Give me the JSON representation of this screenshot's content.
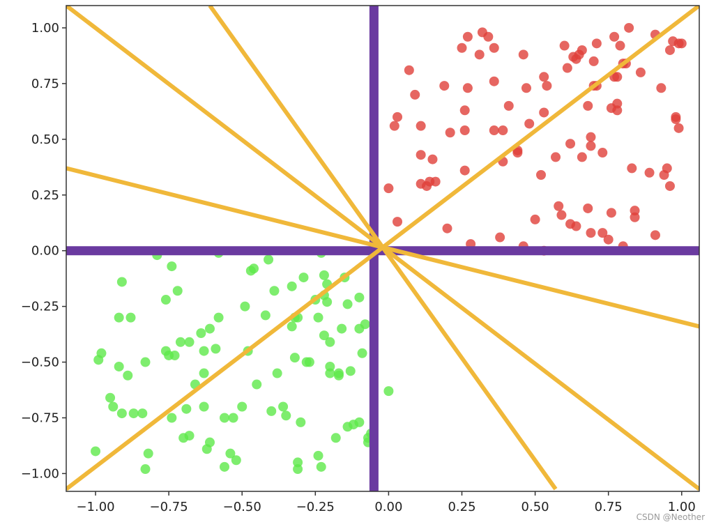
{
  "chart_data": {
    "type": "scatter",
    "title": "",
    "xlabel": "",
    "ylabel": "",
    "xlim": [
      -1.1,
      1.06
    ],
    "ylim": [
      -1.08,
      1.1
    ],
    "grid": false,
    "xticks": [
      -1.0,
      -0.75,
      -0.5,
      -0.25,
      0.0,
      0.25,
      0.5,
      0.75,
      1.0
    ],
    "xtick_labels": [
      "−1.00",
      "−0.75",
      "−0.50",
      "−0.25",
      "0.00",
      "0.25",
      "0.50",
      "0.75",
      "1.00"
    ],
    "yticks": [
      -1.0,
      -0.75,
      -0.5,
      -0.25,
      0.0,
      0.25,
      0.5,
      0.75,
      1.0
    ],
    "ytick_labels": [
      "−1.00",
      "−0.75",
      "−0.50",
      "−0.25",
      "0.00",
      "0.25",
      "0.50",
      "0.75",
      "1.00"
    ],
    "series": [
      {
        "color": "#e0403a",
        "points": [
          [
            0.07,
            0.81
          ],
          [
            0.09,
            0.7
          ],
          [
            0.02,
            0.56
          ],
          [
            0.03,
            0.6
          ],
          [
            0.11,
            0.56
          ],
          [
            0.0,
            0.28
          ],
          [
            0.03,
            0.13
          ],
          [
            0.11,
            0.43
          ],
          [
            0.11,
            0.3
          ],
          [
            0.14,
            0.31
          ],
          [
            0.15,
            0.41
          ],
          [
            0.13,
            0.29
          ],
          [
            0.19,
            0.74
          ],
          [
            0.21,
            0.53
          ],
          [
            0.2,
            0.1
          ],
          [
            0.25,
            0.91
          ],
          [
            0.27,
            0.96
          ],
          [
            0.26,
            0.63
          ],
          [
            0.27,
            0.73
          ],
          [
            0.26,
            0.54
          ],
          [
            0.26,
            0.36
          ],
          [
            0.28,
            0.03
          ],
          [
            0.31,
            0.88
          ],
          [
            0.32,
            0.98
          ],
          [
            0.34,
            0.96
          ],
          [
            0.36,
            0.91
          ],
          [
            0.36,
            0.76
          ],
          [
            0.36,
            0.54
          ],
          [
            0.39,
            0.54
          ],
          [
            0.39,
            0.4
          ],
          [
            0.41,
            0.65
          ],
          [
            0.44,
            0.45
          ],
          [
            0.44,
            0.44
          ],
          [
            0.46,
            0.88
          ],
          [
            0.47,
            0.73
          ],
          [
            0.48,
            0.57
          ],
          [
            0.5,
            0.14
          ],
          [
            0.52,
            0.34
          ],
          [
            0.53,
            0.78
          ],
          [
            0.53,
            0.62
          ],
          [
            0.54,
            0.74
          ],
          [
            0.58,
            0.2
          ],
          [
            0.59,
            0.16
          ],
          [
            0.6,
            0.92
          ],
          [
            0.61,
            0.82
          ],
          [
            0.62,
            0.48
          ],
          [
            0.62,
            0.12
          ],
          [
            0.63,
            0.87
          ],
          [
            0.64,
            0.86
          ],
          [
            0.65,
            0.88
          ],
          [
            0.66,
            0.42
          ],
          [
            0.66,
            0.9
          ],
          [
            0.68,
            0.65
          ],
          [
            0.68,
            0.19
          ],
          [
            0.69,
            0.51
          ],
          [
            0.69,
            0.47
          ],
          [
            0.7,
            0.74
          ],
          [
            0.7,
            0.85
          ],
          [
            0.71,
            0.74
          ],
          [
            0.71,
            0.93
          ],
          [
            0.73,
            0.44
          ],
          [
            0.75,
            0.05
          ],
          [
            0.76,
            0.17
          ],
          [
            0.76,
            0.64
          ],
          [
            0.77,
            0.96
          ],
          [
            0.77,
            0.78
          ],
          [
            0.78,
            0.78
          ],
          [
            0.78,
            0.63
          ],
          [
            0.78,
            0.66
          ],
          [
            0.79,
            0.92
          ],
          [
            0.8,
            0.84
          ],
          [
            0.81,
            0.84
          ],
          [
            0.82,
            1.0
          ],
          [
            0.83,
            0.37
          ],
          [
            0.84,
            0.18
          ],
          [
            0.84,
            0.15
          ],
          [
            0.86,
            0.8
          ],
          [
            0.89,
            0.35
          ],
          [
            0.91,
            0.97
          ],
          [
            0.91,
            0.07
          ],
          [
            0.93,
            0.73
          ],
          [
            0.94,
            0.34
          ],
          [
            0.95,
            0.37
          ],
          [
            0.96,
            0.9
          ],
          [
            0.96,
            0.29
          ],
          [
            0.97,
            0.94
          ],
          [
            0.98,
            0.6
          ],
          [
            0.98,
            0.59
          ],
          [
            0.99,
            0.93
          ],
          [
            1.0,
            0.93
          ],
          [
            0.99,
            0.55
          ],
          [
            0.73,
            0.08
          ],
          [
            0.53,
            0.0
          ],
          [
            0.69,
            0.08
          ],
          [
            0.64,
            0.11
          ],
          [
            0.38,
            0.06
          ],
          [
            0.46,
            0.02
          ],
          [
            0.8,
            0.02
          ],
          [
            0.16,
            0.31
          ],
          [
            0.57,
            0.42
          ]
        ]
      },
      {
        "color": "#5ee84a",
        "points": [
          [
            -0.98,
            -0.46
          ],
          [
            -0.99,
            -0.49
          ],
          [
            -0.95,
            -0.66
          ],
          [
            -0.94,
            -0.7
          ],
          [
            -1.0,
            -0.9
          ],
          [
            -0.92,
            -0.52
          ],
          [
            -0.91,
            -0.14
          ],
          [
            -0.92,
            -0.3
          ],
          [
            -0.91,
            -0.73
          ],
          [
            -0.89,
            -0.56
          ],
          [
            -0.88,
            -0.3
          ],
          [
            -0.87,
            -0.73
          ],
          [
            -0.84,
            -0.73
          ],
          [
            -0.83,
            -0.5
          ],
          [
            -0.82,
            -0.91
          ],
          [
            -0.83,
            -0.98
          ],
          [
            -0.79,
            -0.02
          ],
          [
            -0.76,
            -0.22
          ],
          [
            -0.76,
            -0.45
          ],
          [
            -0.75,
            -0.47
          ],
          [
            -0.74,
            -0.07
          ],
          [
            -0.74,
            -0.75
          ],
          [
            -0.73,
            -0.47
          ],
          [
            -0.72,
            -0.18
          ],
          [
            -0.71,
            -0.41
          ],
          [
            -0.7,
            -0.84
          ],
          [
            -0.68,
            -0.83
          ],
          [
            -0.69,
            -0.71
          ],
          [
            -0.68,
            -0.41
          ],
          [
            -0.66,
            -0.6
          ],
          [
            -0.64,
            -0.37
          ],
          [
            -0.63,
            -0.45
          ],
          [
            -0.63,
            -0.55
          ],
          [
            -0.63,
            -0.7
          ],
          [
            -0.62,
            -0.89
          ],
          [
            -0.61,
            -0.35
          ],
          [
            -0.61,
            -0.86
          ],
          [
            -0.59,
            -0.44
          ],
          [
            -0.58,
            -0.3
          ],
          [
            -0.56,
            -0.75
          ],
          [
            -0.56,
            -0.97
          ],
          [
            -0.54,
            -0.91
          ],
          [
            -0.53,
            -0.75
          ],
          [
            -0.52,
            -0.94
          ],
          [
            -0.5,
            -0.7
          ],
          [
            -0.49,
            -0.25
          ],
          [
            -0.48,
            -0.45
          ],
          [
            -0.47,
            -0.09
          ],
          [
            -0.46,
            -0.08
          ],
          [
            -0.45,
            -0.6
          ],
          [
            -0.42,
            -0.29
          ],
          [
            -0.41,
            -0.04
          ],
          [
            -0.4,
            -0.72
          ],
          [
            -0.39,
            -0.18
          ],
          [
            -0.38,
            -0.55
          ],
          [
            -0.36,
            -0.7
          ],
          [
            -0.35,
            -0.74
          ],
          [
            -0.33,
            -0.16
          ],
          [
            -0.33,
            -0.34
          ],
          [
            -0.32,
            -0.3
          ],
          [
            -0.32,
            -0.48
          ],
          [
            -0.31,
            -0.3
          ],
          [
            -0.31,
            -0.95
          ],
          [
            -0.31,
            -0.98
          ],
          [
            -0.3,
            -0.77
          ],
          [
            -0.29,
            -0.12
          ],
          [
            -0.27,
            -0.5
          ],
          [
            -0.25,
            -0.22
          ],
          [
            -0.24,
            -0.3
          ],
          [
            -0.24,
            -0.92
          ],
          [
            -0.23,
            -0.97
          ],
          [
            -0.22,
            -0.38
          ],
          [
            -0.22,
            -0.2
          ],
          [
            -0.21,
            -0.23
          ],
          [
            -0.21,
            -0.15
          ],
          [
            -0.2,
            -0.41
          ],
          [
            -0.2,
            -0.55
          ],
          [
            -0.2,
            -0.52
          ],
          [
            -0.18,
            -0.84
          ],
          [
            -0.17,
            -0.56
          ],
          [
            -0.17,
            -0.55
          ],
          [
            -0.16,
            -0.35
          ],
          [
            -0.15,
            -0.12
          ],
          [
            -0.14,
            -0.24
          ],
          [
            -0.14,
            -0.79
          ],
          [
            -0.13,
            -0.54
          ],
          [
            -0.12,
            -0.78
          ],
          [
            -0.1,
            -0.35
          ],
          [
            -0.1,
            -0.77
          ],
          [
            -0.1,
            -0.21
          ],
          [
            -0.09,
            -0.46
          ],
          [
            -0.08,
            -0.33
          ],
          [
            -0.07,
            -0.84
          ],
          [
            -0.07,
            -0.86
          ],
          [
            -0.06,
            -0.82
          ],
          [
            -0.22,
            -0.11
          ],
          [
            -0.58,
            -0.01
          ],
          [
            -0.23,
            -0.01
          ],
          [
            0.0,
            -0.63
          ],
          [
            -0.28,
            -0.5
          ]
        ]
      }
    ],
    "lines": [
      {
        "color": "#6a3aa0",
        "style": "thick",
        "from": [
          -1.1,
          0.0
        ],
        "to": [
          1.06,
          0.0
        ]
      },
      {
        "color": "#6a3aa0",
        "style": "thick",
        "from": [
          -0.05,
          -1.08
        ],
        "to": [
          -0.05,
          1.1
        ]
      },
      {
        "color": "#f0b83a",
        "from": [
          -1.1,
          1.1
        ],
        "to": [
          1.06,
          -1.07
        ]
      },
      {
        "color": "#f0b83a",
        "from": [
          -1.1,
          -1.07
        ],
        "to": [
          1.06,
          1.1
        ]
      },
      {
        "color": "#f0b83a",
        "from": [
          -0.61,
          1.1
        ],
        "to": [
          0.57,
          -1.07
        ]
      },
      {
        "color": "#f0b83a",
        "from": [
          -1.1,
          0.37
        ],
        "to": [
          1.06,
          -0.34
        ]
      }
    ]
  },
  "watermark": "CSDN @Neother"
}
